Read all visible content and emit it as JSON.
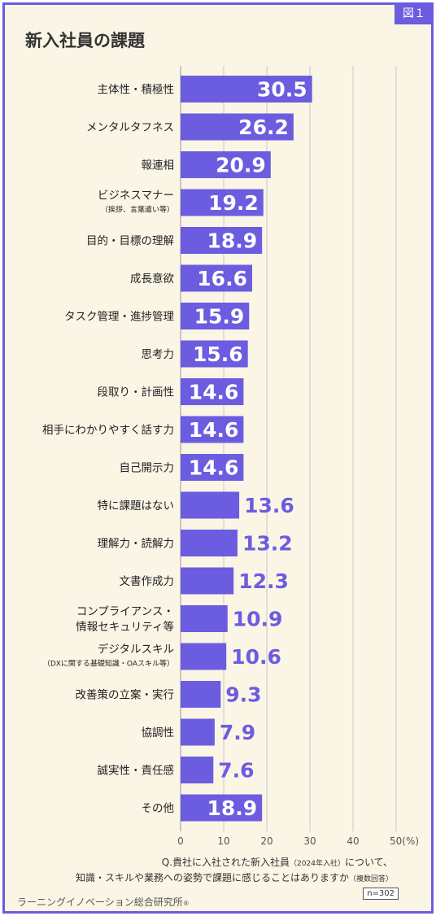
{
  "badge": "図１",
  "title": "新入社員の課題",
  "chart_data": {
    "type": "bar",
    "orientation": "horizontal",
    "categories": [
      [
        "主体性・積極性"
      ],
      [
        "メンタルタフネス"
      ],
      [
        "報連相"
      ],
      [
        "ビジネスマナー",
        "（挨拶、言葉遣い等）"
      ],
      [
        "目的・目標の理解"
      ],
      [
        "成長意欲"
      ],
      [
        "タスク管理・進捗管理"
      ],
      [
        "思考力"
      ],
      [
        "段取り・計画性"
      ],
      [
        "相手にわかりやすく話す力"
      ],
      [
        "自己開示力"
      ],
      [
        "特に課題はない"
      ],
      [
        "理解力・読解力"
      ],
      [
        "文書作成力"
      ],
      [
        "コンプライアンス・",
        "情報セキュリティ等"
      ],
      [
        "デジタルスキル",
        "（DXに関する基礎知識・OAスキル等）"
      ],
      [
        "改善策の立案・実行"
      ],
      [
        "協調性"
      ],
      [
        "誠実性・責任感"
      ],
      [
        "その他"
      ]
    ],
    "values": [
      30.5,
      26.2,
      20.9,
      19.2,
      18.9,
      16.6,
      15.9,
      15.6,
      14.6,
      14.6,
      14.6,
      13.6,
      13.2,
      12.3,
      10.9,
      10.6,
      9.3,
      7.9,
      7.6,
      18.9
    ],
    "value_labels": [
      "30.5",
      "26.2",
      "20.9",
      "19.2",
      "18.9",
      "16.6",
      "15.9",
      "15.6",
      "14.6",
      "14.6",
      "14.6",
      "13.6",
      "13.2",
      "12.3",
      "10.9",
      "10.6",
      "9.3",
      "7.9",
      "7.6",
      "18.9"
    ],
    "x_ticks": [
      "0",
      "10",
      "20",
      "30",
      "40",
      "50(%)"
    ],
    "xlim": [
      0,
      50
    ],
    "grid": true,
    "bar_color": "#6b5ce0",
    "label_inside_threshold": 14.5
  },
  "note": {
    "line1_a": "Q.貴社に入社された新入社員",
    "line1_small": "（2024年入社）",
    "line1_b": "について、",
    "line2_a": "知識・スキルや業務への姿勢で課題に感じることはありますか",
    "line2_small": "（複数回答）"
  },
  "sample": "n=302",
  "credit": "ラーニングイノベーション総合研究所",
  "credit_mark": "®",
  "colors": {
    "accent": "#6b5ce0",
    "background": "#fbf5e6",
    "grid": "#c8c8c8",
    "text": "#333333"
  }
}
